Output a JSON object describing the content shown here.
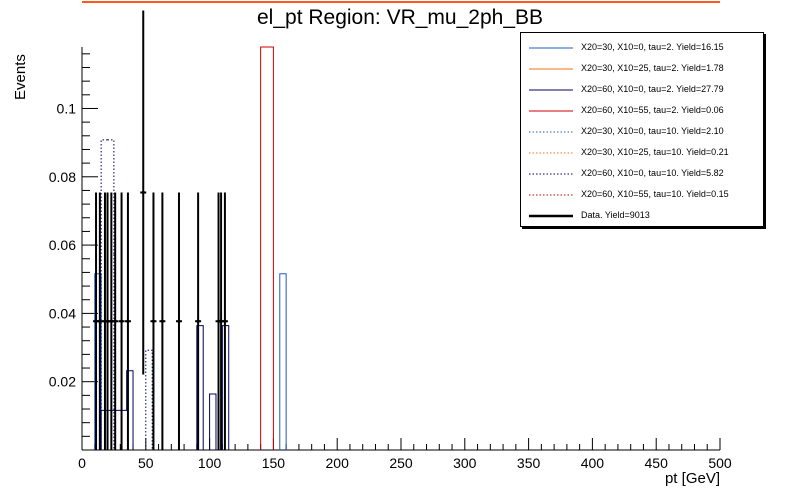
{
  "chart_data": {
    "type": "histogram",
    "title": "el_pt Region: VR_mu_2ph_BB",
    "xlabel": "pt [GeV]",
    "ylabel": "Events",
    "xlim": [
      0,
      500
    ],
    "ylim": [
      0,
      0.118
    ],
    "x_ticks": [
      "0",
      "50",
      "100",
      "150",
      "200",
      "250",
      "300",
      "350",
      "400",
      "450",
      "500"
    ],
    "y_ticks": [
      "0.02",
      "0.04",
      "0.06",
      "0.08",
      "0.1"
    ],
    "bin_width": 5,
    "legend_position": "top-right",
    "series": [
      {
        "name": "X20=30, X10=0, tau=2. Yield=16.15",
        "color": "#1f5fbf",
        "style": "solid",
        "bins": [
          [
            10,
            0.0516
          ],
          [
            155,
            0.0516
          ]
        ]
      },
      {
        "name": "X20=30, X10=25, tau=2. Yield=1.78",
        "color": "#f07010",
        "style": "solid",
        "bins": []
      },
      {
        "name": "X20=60, X10=0, tau=2. Yield=27.79",
        "color": "#000066",
        "style": "solid",
        "bins": [
          [
            15,
            0.0116
          ],
          [
            20,
            0.0116
          ],
          [
            25,
            0.0116
          ],
          [
            30,
            0.0116
          ],
          [
            35,
            0.0232
          ],
          [
            90,
            0.0364
          ],
          [
            100,
            0.0164
          ],
          [
            110,
            0.0364
          ]
        ]
      },
      {
        "name": "X20=60, X10=55, tau=2. Yield=0.06",
        "color": "#cc0000",
        "style": "solid",
        "bins": [
          [
            140,
            0.118
          ],
          [
            145,
            0.118
          ]
        ]
      },
      {
        "name": "X20=30, X10=0, tau=10. Yield=2.10",
        "color": "#1f5fbf",
        "style": "dotted",
        "bins": []
      },
      {
        "name": "X20=30, X10=25, tau=10. Yield=0.21",
        "color": "#f07010",
        "style": "dotted",
        "bins": []
      },
      {
        "name": "X20=60, X10=0, tau=10. Yield=5.82",
        "color": "#000066",
        "style": "dotted",
        "bins": [
          [
            15,
            0.0908
          ],
          [
            20,
            0.0908
          ],
          [
            50,
            0.0292
          ]
        ]
      },
      {
        "name": "X20=60, X10=55, tau=10. Yield=0.15",
        "color": "#cc0000",
        "style": "dotted",
        "bins": []
      },
      {
        "name": "Data. Yield=9013",
        "color": "#000000",
        "style": "data",
        "points": [
          {
            "x": 11,
            "y": 0.0377,
            "err": 0.0377
          },
          {
            "x": 14,
            "y": 0.0377,
            "err": 0.0377
          },
          {
            "x": 18,
            "y": 0.0377,
            "err": 0.0377
          },
          {
            "x": 20,
            "y": 0.0377,
            "err": 0.0377
          },
          {
            "x": 23,
            "y": 0.0377,
            "err": 0.0377
          },
          {
            "x": 26,
            "y": 0.0377,
            "err": 0.0377
          },
          {
            "x": 31,
            "y": 0.0377,
            "err": 0.0377
          },
          {
            "x": 36,
            "y": 0.0377,
            "err": 0.0377
          },
          {
            "x": 48,
            "y": 0.0754,
            "err": 0.0533
          },
          {
            "x": 56,
            "y": 0.0377,
            "err": 0.0377
          },
          {
            "x": 63,
            "y": 0.0377,
            "err": 0.0377
          },
          {
            "x": 76,
            "y": 0.0377,
            "err": 0.0377
          },
          {
            "x": 91,
            "y": 0.0377,
            "err": 0.0377
          },
          {
            "x": 107,
            "y": 0.0377,
            "err": 0.0377
          },
          {
            "x": 109,
            "y": 0.0377,
            "err": 0.0377
          },
          {
            "x": 112,
            "y": 0.0377,
            "err": 0.0377
          }
        ]
      }
    ]
  }
}
